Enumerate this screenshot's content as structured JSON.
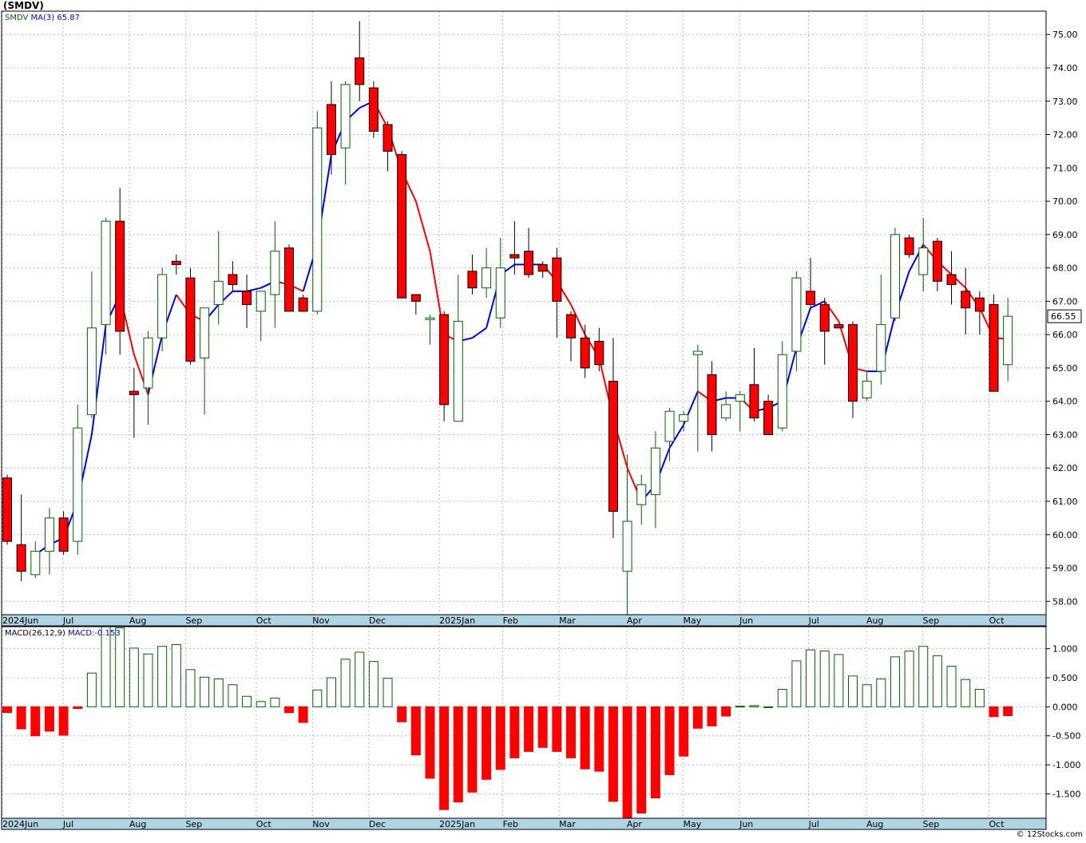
{
  "title": "(SMDV)",
  "watermark": "© 12Stocks.com",
  "chart_data": [
    {
      "type": "candlestick",
      "name": "price",
      "legend": {
        "symbol": "SMDV",
        "ma_label": "MA(3)",
        "ma_value": "65.87"
      },
      "last_price_label": "66.55",
      "ylim": [
        57.6,
        75.7
      ],
      "y_ticks": [
        "58.00",
        "59.00",
        "60.00",
        "61.00",
        "62.00",
        "63.00",
        "64.00",
        "65.00",
        "66.00",
        "67.00",
        "68.00",
        "69.00",
        "70.00",
        "71.00",
        "72.00",
        "73.00",
        "74.00",
        "75.00"
      ],
      "x_labels": [
        {
          "label": "2024Jun",
          "week": 0
        },
        {
          "label": "Jul",
          "week": 4.3
        },
        {
          "label": "Aug",
          "week": 9
        },
        {
          "label": "Sep",
          "week": 13
        },
        {
          "label": "Oct",
          "week": 18
        },
        {
          "label": "Nov",
          "week": 22
        },
        {
          "label": "Dec",
          "week": 26
        },
        {
          "label": "2025Jan",
          "week": 31
        },
        {
          "label": "Feb",
          "week": 35.5
        },
        {
          "label": "Mar",
          "week": 39.5
        },
        {
          "label": "Apr",
          "week": 44.3
        },
        {
          "label": "May",
          "week": 48.3
        },
        {
          "label": "Jun",
          "week": 52.3
        },
        {
          "label": "Jul",
          "week": 57.2
        },
        {
          "label": "Aug",
          "week": 61.3
        },
        {
          "label": "Sep",
          "week": 65.3
        },
        {
          "label": "Oct",
          "week": 70
        }
      ],
      "candles": [
        {
          "o": 61.7,
          "h": 61.8,
          "l": 59.7,
          "c": 59.8
        },
        {
          "o": 59.7,
          "h": 61.2,
          "l": 58.6,
          "c": 58.9
        },
        {
          "o": 58.8,
          "h": 59.8,
          "l": 58.7,
          "c": 59.5
        },
        {
          "o": 59.5,
          "h": 60.8,
          "l": 58.8,
          "c": 60.5
        },
        {
          "o": 60.5,
          "h": 60.7,
          "l": 59.4,
          "c": 59.5
        },
        {
          "o": 59.8,
          "h": 63.9,
          "l": 59.4,
          "c": 63.2
        },
        {
          "o": 63.6,
          "h": 67.9,
          "l": 63.5,
          "c": 66.2
        },
        {
          "o": 66.3,
          "h": 69.5,
          "l": 65.4,
          "c": 69.4
        },
        {
          "o": 69.4,
          "h": 70.4,
          "l": 65.4,
          "c": 66.1
        },
        {
          "o": 64.3,
          "h": 65.0,
          "l": 62.9,
          "c": 64.2
        },
        {
          "o": 64.4,
          "h": 66.1,
          "l": 63.3,
          "c": 65.9
        },
        {
          "o": 65.9,
          "h": 68.0,
          "l": 65.5,
          "c": 67.8
        },
        {
          "o": 68.2,
          "h": 68.4,
          "l": 67.8,
          "c": 68.1
        },
        {
          "o": 67.7,
          "h": 68.0,
          "l": 65.1,
          "c": 65.2
        },
        {
          "o": 65.3,
          "h": 66.8,
          "l": 63.6,
          "c": 66.8
        },
        {
          "o": 66.9,
          "h": 69.1,
          "l": 66.3,
          "c": 67.6
        },
        {
          "o": 67.8,
          "h": 68.2,
          "l": 67.3,
          "c": 67.5
        },
        {
          "o": 67.3,
          "h": 67.8,
          "l": 66.2,
          "c": 66.9
        },
        {
          "o": 66.7,
          "h": 67.3,
          "l": 65.8,
          "c": 67.3
        },
        {
          "o": 67.2,
          "h": 69.4,
          "l": 66.2,
          "c": 68.5
        },
        {
          "o": 68.6,
          "h": 68.7,
          "l": 66.7,
          "c": 66.7
        },
        {
          "o": 67.1,
          "h": 67.2,
          "l": 66.7,
          "c": 66.7
        },
        {
          "o": 66.7,
          "h": 72.7,
          "l": 66.6,
          "c": 72.2
        },
        {
          "o": 72.9,
          "h": 73.6,
          "l": 70.8,
          "c": 71.4
        },
        {
          "o": 71.6,
          "h": 73.6,
          "l": 70.5,
          "c": 73.5
        },
        {
          "o": 74.3,
          "h": 75.4,
          "l": 73.0,
          "c": 73.5
        },
        {
          "o": 73.4,
          "h": 73.6,
          "l": 71.9,
          "c": 72.1
        },
        {
          "o": 72.3,
          "h": 72.4,
          "l": 70.9,
          "c": 71.5
        },
        {
          "o": 71.4,
          "h": 71.5,
          "l": 67.1,
          "c": 67.1
        },
        {
          "o": 67.2,
          "h": 67.2,
          "l": 66.6,
          "c": 67.0
        },
        {
          "o": 66.5,
          "h": 66.6,
          "l": 65.7,
          "c": 66.5
        },
        {
          "o": 66.6,
          "h": 66.7,
          "l": 63.4,
          "c": 63.9
        },
        {
          "o": 63.4,
          "h": 67.8,
          "l": 63.4,
          "c": 66.4
        },
        {
          "o": 67.9,
          "h": 68.4,
          "l": 67.2,
          "c": 67.4
        },
        {
          "o": 67.4,
          "h": 68.6,
          "l": 67.1,
          "c": 68.0
        },
        {
          "o": 66.5,
          "h": 68.9,
          "l": 66.2,
          "c": 68.0
        },
        {
          "o": 68.4,
          "h": 69.4,
          "l": 67.8,
          "c": 68.3
        },
        {
          "o": 68.5,
          "h": 69.2,
          "l": 67.7,
          "c": 67.8
        },
        {
          "o": 68.1,
          "h": 68.2,
          "l": 67.7,
          "c": 67.9
        },
        {
          "o": 68.3,
          "h": 68.6,
          "l": 65.9,
          "c": 67.0
        },
        {
          "o": 66.6,
          "h": 66.7,
          "l": 65.2,
          "c": 65.9
        },
        {
          "o": 65.9,
          "h": 66.3,
          "l": 64.7,
          "c": 65.0
        },
        {
          "o": 65.8,
          "h": 66.2,
          "l": 64.9,
          "c": 65.1
        },
        {
          "o": 64.6,
          "h": 65.9,
          "l": 59.9,
          "c": 60.7
        },
        {
          "o": 58.9,
          "h": 62.4,
          "l": 57.6,
          "c": 60.4
        },
        {
          "o": 60.9,
          "h": 61.8,
          "l": 60.3,
          "c": 61.5
        },
        {
          "o": 61.2,
          "h": 63.1,
          "l": 60.2,
          "c": 62.6
        },
        {
          "o": 62.8,
          "h": 63.8,
          "l": 62.2,
          "c": 63.7
        },
        {
          "o": 63.4,
          "h": 63.7,
          "l": 63.1,
          "c": 63.6
        },
        {
          "o": 65.4,
          "h": 65.7,
          "l": 62.5,
          "c": 65.5
        },
        {
          "o": 64.8,
          "h": 65.2,
          "l": 62.5,
          "c": 63.0
        },
        {
          "o": 63.5,
          "h": 64.3,
          "l": 63.4,
          "c": 63.9
        },
        {
          "o": 64.0,
          "h": 64.3,
          "l": 63.1,
          "c": 64.2
        },
        {
          "o": 64.5,
          "h": 65.6,
          "l": 63.4,
          "c": 63.5
        },
        {
          "o": 64.0,
          "h": 64.2,
          "l": 63.0,
          "c": 63.0
        },
        {
          "o": 63.2,
          "h": 65.8,
          "l": 63.1,
          "c": 65.4
        },
        {
          "o": 65.5,
          "h": 67.9,
          "l": 64.9,
          "c": 67.7
        },
        {
          "o": 67.3,
          "h": 68.3,
          "l": 66.8,
          "c": 66.9
        },
        {
          "o": 66.9,
          "h": 67.1,
          "l": 65.1,
          "c": 66.1
        },
        {
          "o": 66.3,
          "h": 66.3,
          "l": 66.2,
          "c": 66.2
        },
        {
          "o": 66.3,
          "h": 66.4,
          "l": 63.5,
          "c": 64.0
        },
        {
          "o": 64.1,
          "h": 64.9,
          "l": 64.0,
          "c": 64.6
        },
        {
          "o": 64.9,
          "h": 67.8,
          "l": 64.5,
          "c": 66.3
        },
        {
          "o": 66.5,
          "h": 69.2,
          "l": 66.4,
          "c": 69.0
        },
        {
          "o": 68.9,
          "h": 69.0,
          "l": 68.3,
          "c": 68.4
        },
        {
          "o": 67.8,
          "h": 69.5,
          "l": 67.3,
          "c": 68.6
        },
        {
          "o": 68.8,
          "h": 68.9,
          "l": 67.3,
          "c": 67.6
        },
        {
          "o": 67.8,
          "h": 68.5,
          "l": 66.9,
          "c": 67.5
        },
        {
          "o": 67.3,
          "h": 68.0,
          "l": 66.0,
          "c": 66.8
        },
        {
          "o": 67.1,
          "h": 67.3,
          "l": 66.0,
          "c": 66.7
        },
        {
          "o": 66.9,
          "h": 67.2,
          "l": 64.3,
          "c": 64.3
        },
        {
          "o": 65.1,
          "h": 67.1,
          "l": 64.6,
          "c": 66.55
        }
      ],
      "ma3": [
        null,
        null,
        59.4,
        59.7,
        59.9,
        61.0,
        63.0,
        66.3,
        67.2,
        65.4,
        64.2,
        66.0,
        67.2,
        66.6,
        66.4,
        66.9,
        67.3,
        67.3,
        67.4,
        67.6,
        67.5,
        67.3,
        68.7,
        71.4,
        72.4,
        72.8,
        73.0,
        72.2,
        70.9,
        70.0,
        68.5,
        66.0,
        65.8,
        65.9,
        66.2,
        67.8,
        68.1,
        68.1,
        68.1,
        67.6,
        66.9,
        66.0,
        65.3,
        63.5,
        62.0,
        61.0,
        61.5,
        62.6,
        63.3,
        64.3,
        64.0,
        64.1,
        64.1,
        63.7,
        63.8,
        64.0,
        65.6,
        66.8,
        67.0,
        66.4,
        65.0,
        64.9,
        64.9,
        66.6,
        67.9,
        68.7,
        68.2,
        67.8,
        67.4,
        66.8,
        65.9,
        65.87
      ]
    },
    {
      "type": "bar",
      "name": "macd-histogram",
      "legend": {
        "label": "MACD(26,12,9)",
        "value_label": "MACD:-0.153"
      },
      "ylim": [
        -1.92,
        1.38
      ],
      "y_ticks": [
        "1.000",
        "0.500",
        "0.000",
        "-0.500",
        "-1.000",
        "-1.500"
      ],
      "x_labels": [
        {
          "label": "2024Jun",
          "week": 0
        },
        {
          "label": "Jul",
          "week": 4.3
        },
        {
          "label": "Aug",
          "week": 9
        },
        {
          "label": "Sep",
          "week": 13
        },
        {
          "label": "Oct",
          "week": 18
        },
        {
          "label": "Nov",
          "week": 22
        },
        {
          "label": "Dec",
          "week": 26
        },
        {
          "label": "2025Jan",
          "week": 31
        },
        {
          "label": "Feb",
          "week": 35.5
        },
        {
          "label": "Mar",
          "week": 39.5
        },
        {
          "label": "Apr",
          "week": 44.3
        },
        {
          "label": "May",
          "week": 48.3
        },
        {
          "label": "Jun",
          "week": 52.3
        },
        {
          "label": "Jul",
          "week": 57.2
        },
        {
          "label": "Aug",
          "week": 61.3
        },
        {
          "label": "Sep",
          "week": 65.3
        },
        {
          "label": "Oct",
          "week": 70
        }
      ],
      "values": [
        -0.1,
        -0.38,
        -0.5,
        -0.42,
        -0.49,
        -0.03,
        0.58,
        1.38,
        1.36,
        1.01,
        0.91,
        1.04,
        1.07,
        0.64,
        0.51,
        0.48,
        0.38,
        0.18,
        0.09,
        0.15,
        -0.1,
        -0.27,
        0.29,
        0.5,
        0.82,
        0.94,
        0.78,
        0.49,
        -0.26,
        -0.83,
        -1.23,
        -1.77,
        -1.64,
        -1.47,
        -1.25,
        -1.08,
        -0.88,
        -0.77,
        -0.7,
        -0.77,
        -0.88,
        -1.07,
        -1.11,
        -1.63,
        -1.91,
        -1.83,
        -1.57,
        -1.17,
        -0.85,
        -0.37,
        -0.33,
        -0.16,
        0.01,
        0.02,
        0.0,
        0.3,
        0.79,
        0.98,
        0.96,
        0.9,
        0.53,
        0.38,
        0.48,
        0.86,
        0.96,
        1.04,
        0.88,
        0.7,
        0.47,
        0.3,
        -0.17,
        -0.153
      ]
    }
  ],
  "colors": {
    "up_fill": "#ffffff",
    "up_stroke": "#006400",
    "down_fill": "#ff0000",
    "down_stroke": "#000000",
    "ma_up": "#0000ee",
    "ma_down": "#ff0000",
    "macd_pos_fill": "#ffffff",
    "macd_pos_stroke": "#006400",
    "macd_neg": "#ff0000",
    "grid": "#bbbbbb",
    "axis_band": "#b0d4e4",
    "frame": "#000000",
    "price_tag_bg": "#ffffff",
    "price_tag_text": "#007700"
  }
}
